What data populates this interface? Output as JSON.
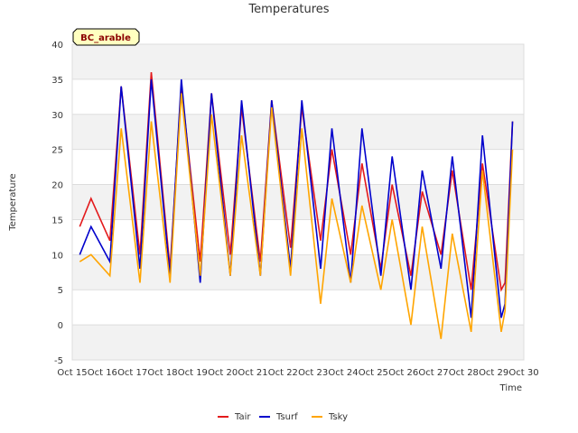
{
  "chart_data": {
    "type": "line",
    "title": "Temperatures",
    "xlabel": "Time",
    "ylabel": "Temperature",
    "site_label": "BC_arable",
    "ylim": [
      -5,
      40
    ],
    "yticks": [
      -5,
      0,
      5,
      10,
      15,
      20,
      25,
      30,
      35,
      40
    ],
    "xlim": [
      "2015-10-15",
      "2015-10-30"
    ],
    "xtick_labels": [
      "Oct 15",
      "Oct 16",
      "Oct 17",
      "Oct 18",
      "Oct 19",
      "Oct 20",
      "Oct 21",
      "Oct 22",
      "Oct 23",
      "Oct 24",
      "Oct 25",
      "Oct 26",
      "Oct 27",
      "Oct 28",
      "Oct 29",
      "Oct 30"
    ],
    "grid": true,
    "legend_position": "bottom",
    "background_bands": true,
    "series": [
      {
        "name": "Tair",
        "color": "#e31a1c",
        "x": [
          "2015-10-15 06:00",
          "2015-10-15 15:00",
          "2015-10-16 06:00",
          "2015-10-16 15:00",
          "2015-10-17 06:00",
          "2015-10-17 15:00",
          "2015-10-18 06:00",
          "2015-10-18 15:00",
          "2015-10-19 06:00",
          "2015-10-19 15:00",
          "2015-10-20 06:00",
          "2015-10-20 15:00",
          "2015-10-21 06:00",
          "2015-10-21 15:00",
          "2015-10-22 06:00",
          "2015-10-22 15:00",
          "2015-10-23 06:00",
          "2015-10-23 15:00",
          "2015-10-24 06:00",
          "2015-10-24 15:00",
          "2015-10-25 06:00",
          "2015-10-25 15:00",
          "2015-10-26 06:00",
          "2015-10-26 15:00",
          "2015-10-27 06:00",
          "2015-10-27 15:00",
          "2015-10-28 06:00",
          "2015-10-28 15:00",
          "2015-10-29 06:00",
          "2015-10-29 15:00",
          "2015-10-29 09:00"
        ],
        "y": [
          14,
          18,
          12,
          34,
          10,
          36,
          8,
          34,
          9,
          33,
          10,
          31,
          9,
          32,
          11,
          31,
          12,
          25,
          10,
          23,
          8,
          20,
          7,
          19,
          10,
          22,
          5,
          23,
          5,
          29,
          6
        ]
      },
      {
        "name": "Tsurf",
        "color": "#0000cc",
        "x": [
          "2015-10-15 06:00",
          "2015-10-15 15:00",
          "2015-10-16 06:00",
          "2015-10-16 15:00",
          "2015-10-17 06:00",
          "2015-10-17 15:00",
          "2015-10-18 06:00",
          "2015-10-18 15:00",
          "2015-10-19 06:00",
          "2015-10-19 15:00",
          "2015-10-20 06:00",
          "2015-10-20 15:00",
          "2015-10-21 06:00",
          "2015-10-21 15:00",
          "2015-10-22 06:00",
          "2015-10-22 15:00",
          "2015-10-23 06:00",
          "2015-10-23 15:00",
          "2015-10-24 06:00",
          "2015-10-24 15:00",
          "2015-10-25 06:00",
          "2015-10-25 15:00",
          "2015-10-26 06:00",
          "2015-10-26 15:00",
          "2015-10-27 06:00",
          "2015-10-27 15:00",
          "2015-10-28 06:00",
          "2015-10-28 15:00",
          "2015-10-29 06:00",
          "2015-10-29 15:00",
          "2015-10-29 09:00"
        ],
        "y": [
          10,
          14,
          9,
          34,
          8,
          35,
          7,
          35,
          6,
          33,
          7,
          32,
          7,
          32,
          8,
          32,
          8,
          28,
          6,
          28,
          7,
          24,
          5,
          22,
          8,
          24,
          1,
          27,
          1,
          29,
          3
        ]
      },
      {
        "name": "Tsky",
        "color": "#ffa500",
        "x": [
          "2015-10-15 06:00",
          "2015-10-15 15:00",
          "2015-10-16 06:00",
          "2015-10-16 15:00",
          "2015-10-17 06:00",
          "2015-10-17 15:00",
          "2015-10-18 06:00",
          "2015-10-18 15:00",
          "2015-10-19 06:00",
          "2015-10-19 15:00",
          "2015-10-20 06:00",
          "2015-10-20 15:00",
          "2015-10-21 06:00",
          "2015-10-21 15:00",
          "2015-10-22 06:00",
          "2015-10-22 15:00",
          "2015-10-23 06:00",
          "2015-10-23 15:00",
          "2015-10-24 06:00",
          "2015-10-24 15:00",
          "2015-10-25 06:00",
          "2015-10-25 15:00",
          "2015-10-26 06:00",
          "2015-10-26 15:00",
          "2015-10-27 06:00",
          "2015-10-27 15:00",
          "2015-10-28 06:00",
          "2015-10-28 15:00",
          "2015-10-29 06:00",
          "2015-10-29 15:00",
          "2015-10-29 09:00"
        ],
        "y": [
          9,
          10,
          7,
          28,
          6,
          29,
          6,
          33,
          7,
          30,
          7,
          27,
          7,
          31,
          7,
          28,
          3,
          18,
          6,
          17,
          5,
          15,
          0,
          14,
          -2,
          13,
          -1,
          22,
          -1,
          25,
          2
        ]
      }
    ]
  }
}
